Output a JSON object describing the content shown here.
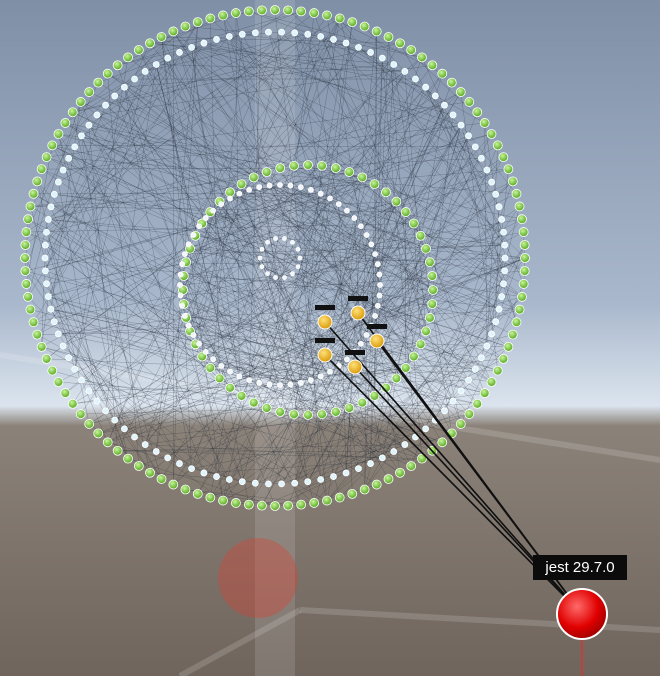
{
  "label": {
    "text": "jest 29.7.0"
  }
}
